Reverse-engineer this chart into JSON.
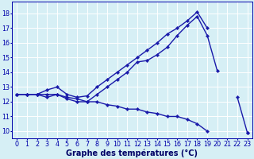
{
  "xlabel": "Graphe des températures (°C)",
  "background_color": "#d6eff5",
  "grid_color": "#ffffff",
  "line_color": "#1a1aaa",
  "hours": [
    0,
    1,
    2,
    3,
    4,
    5,
    6,
    7,
    8,
    9,
    10,
    11,
    12,
    13,
    14,
    15,
    16,
    17,
    18,
    19,
    20,
    21,
    22,
    23
  ],
  "s1": [
    12.5,
    12.5,
    12.5,
    12.3,
    12.5,
    12.2,
    12.0,
    12.0,
    12.5,
    13.0,
    13.5,
    14.0,
    14.7,
    14.8,
    15.2,
    15.7,
    16.5,
    17.2,
    17.8,
    16.5,
    14.1,
    null,
    12.3,
    9.9
  ],
  "s2": [
    12.5,
    12.5,
    12.5,
    12.8,
    13.0,
    12.5,
    12.3,
    12.4,
    13.0,
    13.5,
    14.0,
    14.5,
    15.0,
    15.5,
    16.0,
    16.6,
    17.0,
    17.5,
    18.1,
    17.0,
    null,
    null,
    null,
    null
  ],
  "s3": [
    12.5,
    12.5,
    12.5,
    12.5,
    12.5,
    12.3,
    12.2,
    12.0,
    12.0,
    11.8,
    11.7,
    11.5,
    11.5,
    11.3,
    11.2,
    11.0,
    11.0,
    10.8,
    10.5,
    10.0,
    null,
    null,
    null,
    9.9
  ],
  "ylim": [
    9.5,
    18.8
  ],
  "yticks": [
    10,
    11,
    12,
    13,
    14,
    15,
    16,
    17,
    18
  ],
  "xlim": [
    -0.5,
    23.5
  ],
  "xticks": [
    0,
    1,
    2,
    3,
    4,
    5,
    6,
    7,
    8,
    9,
    10,
    11,
    12,
    13,
    14,
    15,
    16,
    17,
    18,
    19,
    20,
    21,
    22,
    23
  ],
  "marker": "D",
  "markersize": 2.2,
  "linewidth": 1.0,
  "xlabel_fontsize": 7,
  "tick_fontsize": 5.8
}
